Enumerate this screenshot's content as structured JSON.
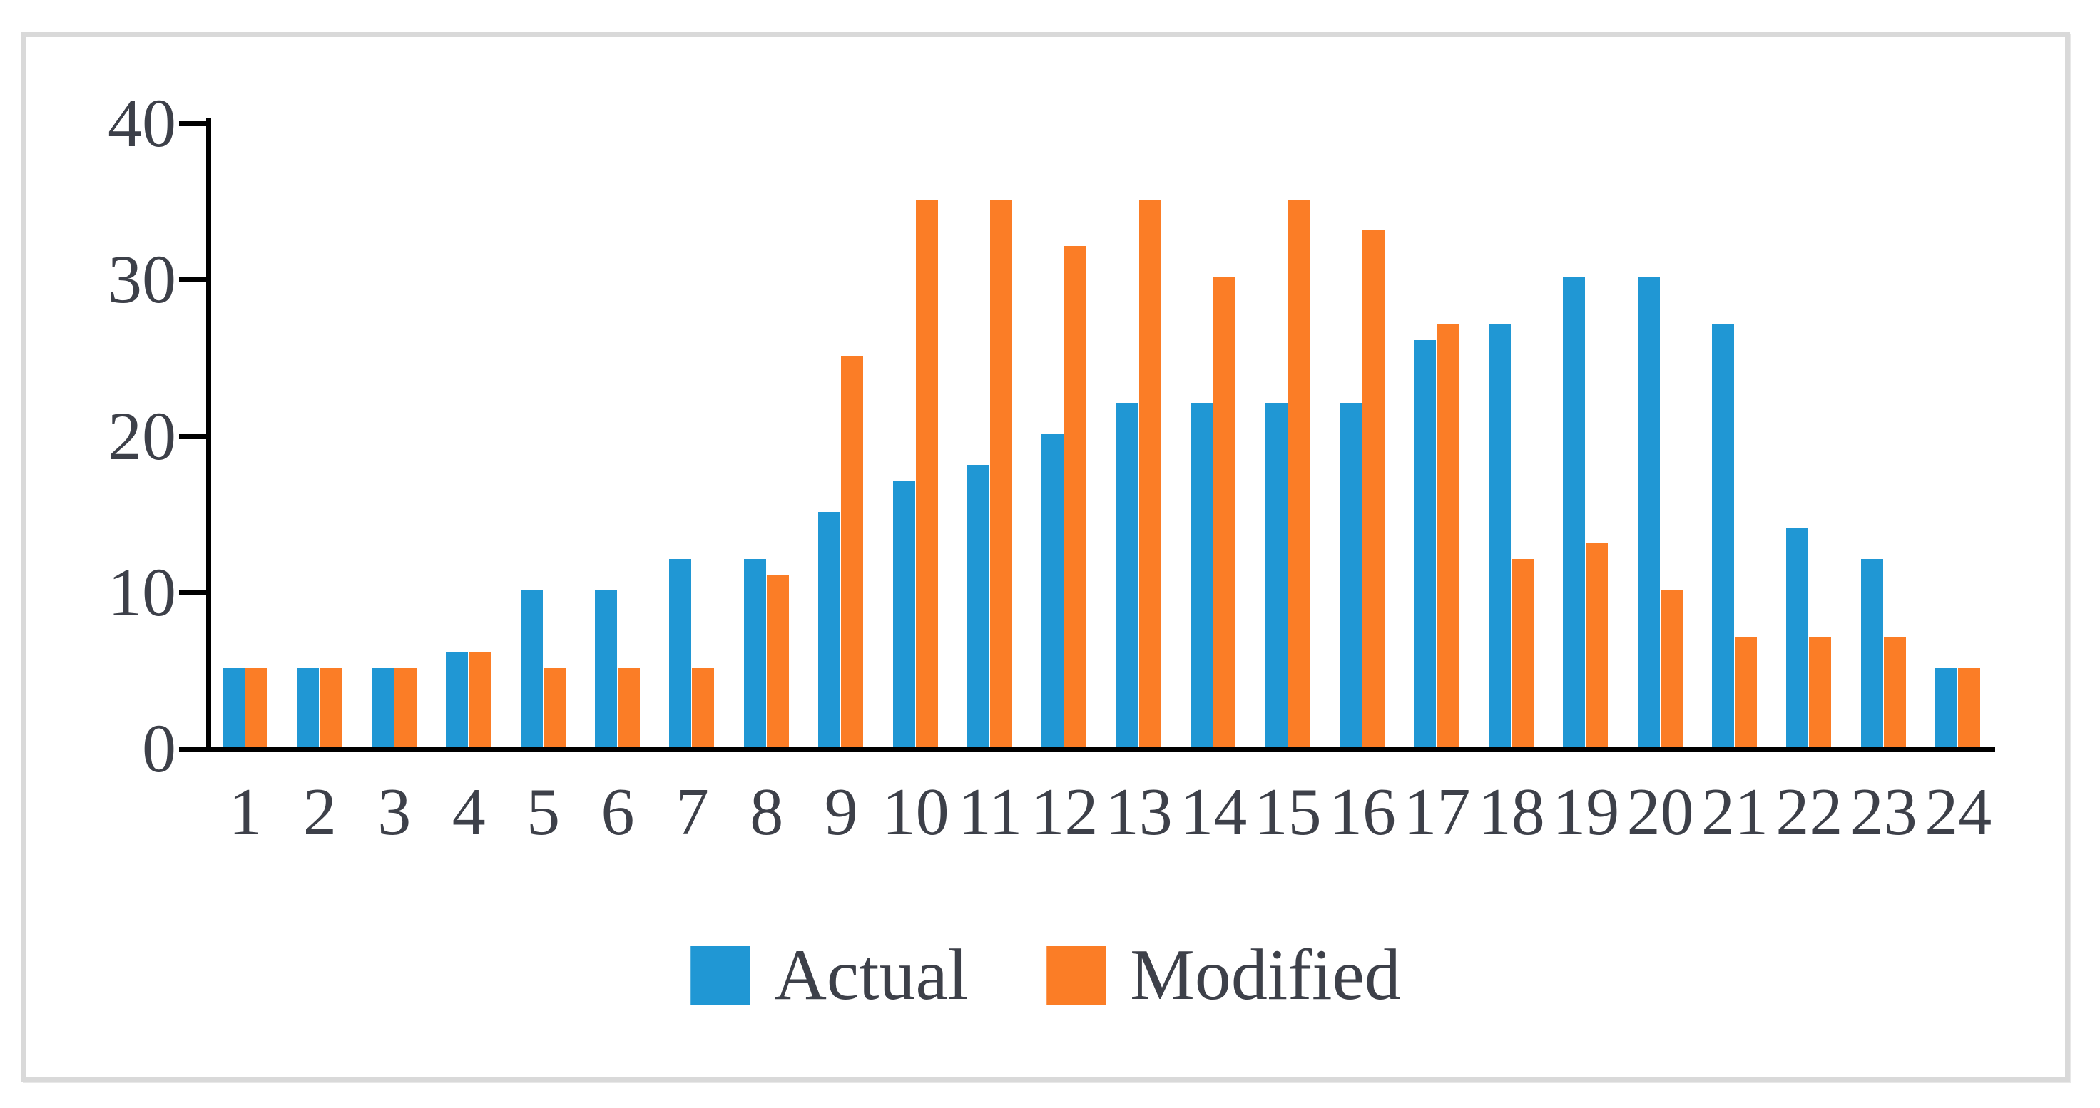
{
  "chart_data": {
    "type": "bar",
    "title": "",
    "xlabel": "",
    "ylabel": "",
    "categories": [
      "1",
      "2",
      "3",
      "4",
      "5",
      "6",
      "7",
      "8",
      "9",
      "10",
      "11",
      "12",
      "13",
      "14",
      "15",
      "16",
      "17",
      "18",
      "19",
      "20",
      "21",
      "22",
      "23",
      "24"
    ],
    "series": [
      {
        "name": "Actual",
        "color": "#2097d4",
        "values": [
          5,
          5,
          5,
          6,
          10,
          10,
          12,
          12,
          15,
          17,
          18,
          20,
          22,
          22,
          22,
          22,
          26,
          27,
          30,
          30,
          27,
          14,
          12,
          5
        ]
      },
      {
        "name": "Modified",
        "color": "#fb7d26",
        "values": [
          5,
          5,
          5,
          6,
          5,
          5,
          5,
          11,
          25,
          35,
          35,
          32,
          35,
          30,
          35,
          33,
          27,
          12,
          13,
          10,
          7,
          7,
          7,
          5
        ]
      }
    ],
    "ylim": [
      0,
      40
    ],
    "yticks": [
      0,
      10,
      20,
      30,
      40
    ],
    "grid": false,
    "legend_position": "bottom",
    "colors": {
      "axis": "#000000",
      "tick_text": "#3d4049",
      "frame_border": "#d9d9d9",
      "background": "#ffffff"
    }
  }
}
